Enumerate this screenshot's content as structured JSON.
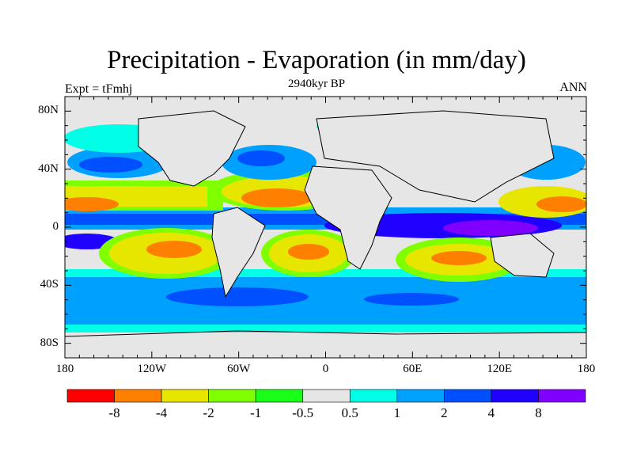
{
  "title": "Precipitation - Evaporation (in mm/day)",
  "subtitle": "2940kyr BP",
  "left_label": "Expt = tFmhj",
  "right_label": "ANN",
  "chart_data": {
    "type": "heatmap",
    "projection": "cylindrical-equidistant",
    "variable": "Precipitation - Evaporation",
    "units": "mm/day",
    "lon_range": [
      -180,
      180
    ],
    "lat_range": [
      -90,
      90
    ],
    "y_ticks": [
      {
        "value": 80,
        "label": "80N"
      },
      {
        "value": 40,
        "label": "40N"
      },
      {
        "value": 0,
        "label": "0"
      },
      {
        "value": -40,
        "label": "40S"
      },
      {
        "value": -80,
        "label": "80S"
      }
    ],
    "x_ticks": [
      {
        "value": -180,
        "label": "180"
      },
      {
        "value": -120,
        "label": "120W"
      },
      {
        "value": -60,
        "label": "60W"
      },
      {
        "value": 0,
        "label": "0"
      },
      {
        "value": 60,
        "label": "60E"
      },
      {
        "value": 120,
        "label": "120E"
      },
      {
        "value": 180,
        "label": "180"
      }
    ],
    "colorbar": {
      "levels": [
        "-8",
        "-4",
        "-2",
        "-1",
        "-0.5",
        "0.5",
        "1",
        "2",
        "4",
        "8"
      ],
      "colors": [
        "#ff0000",
        "#ff8000",
        "#e6e600",
        "#80ff00",
        "#19ff19",
        "#e6e6e6",
        "#00ffe6",
        "#00a0ff",
        "#0050ff",
        "#2000ff",
        "#8000ff"
      ]
    }
  }
}
